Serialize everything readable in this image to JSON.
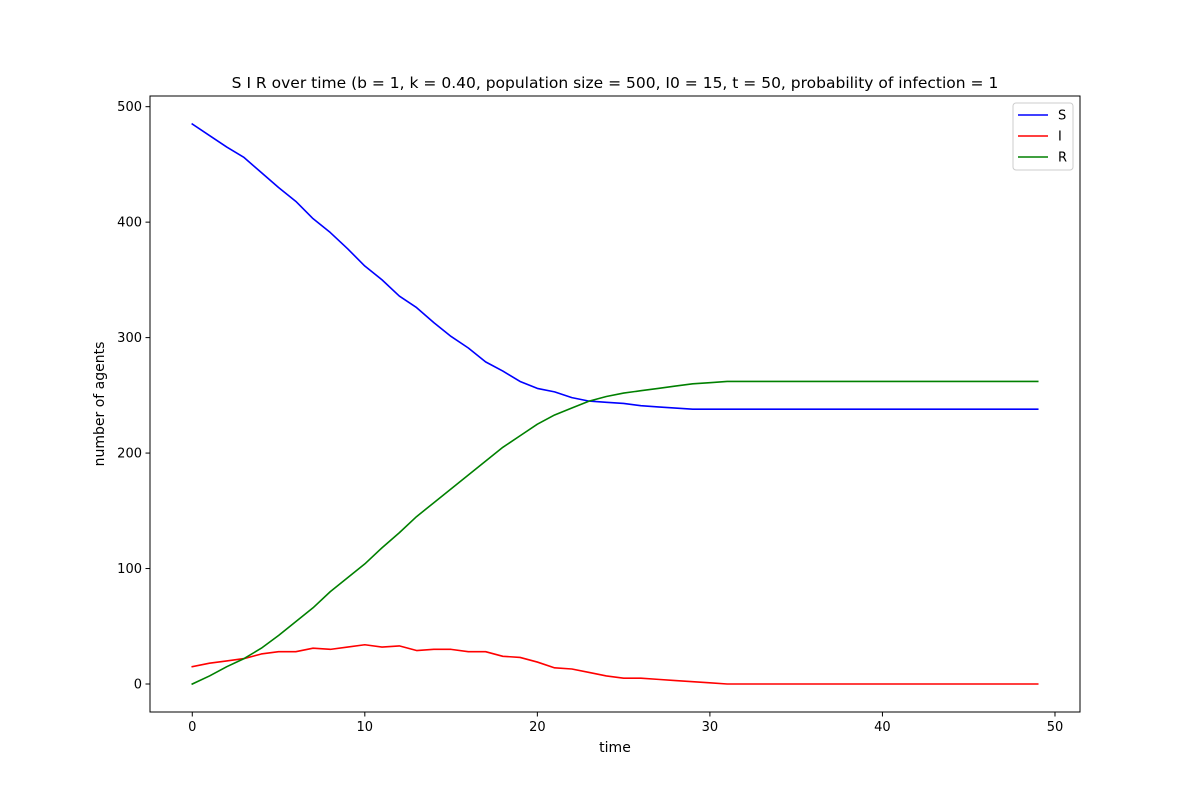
{
  "chart_data": {
    "type": "line",
    "title": "S I R over time (b = 1, k = 0.40, population size = 500, I0 = 15, t = 50, probability of infection = 1",
    "xlabel": "time",
    "ylabel": "number of agents",
    "xlim": [
      -2.45,
      51.45
    ],
    "ylim": [
      -24.25,
      509.25
    ],
    "xticks": [
      0,
      10,
      20,
      30,
      40,
      50
    ],
    "yticks": [
      0,
      100,
      200,
      300,
      400,
      500
    ],
    "grid": false,
    "legend_position": "top-right",
    "x": [
      0,
      1,
      2,
      3,
      4,
      5,
      6,
      7,
      8,
      9,
      10,
      11,
      12,
      13,
      14,
      15,
      16,
      17,
      18,
      19,
      20,
      21,
      22,
      23,
      24,
      25,
      26,
      27,
      28,
      29,
      30,
      31,
      32,
      33,
      34,
      35,
      36,
      37,
      38,
      39,
      40,
      41,
      42,
      43,
      44,
      45,
      46,
      47,
      48,
      49
    ],
    "series": [
      {
        "name": "S",
        "color": "#0000ff",
        "values": [
          485,
          475,
          465,
          456,
          443,
          430,
          418,
          403,
          391,
          377,
          362,
          350,
          336,
          326,
          313,
          301,
          291,
          279,
          271,
          262,
          256,
          253,
          248,
          245,
          244,
          243,
          241,
          240,
          239,
          238,
          238,
          238,
          238,
          238,
          238,
          238,
          238,
          238,
          238,
          238,
          238,
          238,
          238,
          238,
          238,
          238,
          238,
          238,
          238,
          238
        ]
      },
      {
        "name": "I",
        "color": "#ff0000",
        "values": [
          15,
          18,
          20,
          22,
          26,
          28,
          28,
          31,
          30,
          32,
          34,
          32,
          33,
          29,
          30,
          30,
          28,
          28,
          24,
          23,
          19,
          14,
          13,
          10,
          7,
          5,
          5,
          4,
          3,
          2,
          1,
          0,
          0,
          0,
          0,
          0,
          0,
          0,
          0,
          0,
          0,
          0,
          0,
          0,
          0,
          0,
          0,
          0,
          0,
          0
        ]
      },
      {
        "name": "R",
        "color": "#008000",
        "values": [
          0,
          7,
          15,
          22,
          31,
          42,
          54,
          66,
          80,
          92,
          104,
          118,
          131,
          145,
          157,
          169,
          181,
          193,
          205,
          215,
          225,
          233,
          239,
          245,
          249,
          252,
          254,
          256,
          258,
          260,
          261,
          262,
          262,
          262,
          262,
          262,
          262,
          262,
          262,
          262,
          262,
          262,
          262,
          262,
          262,
          262,
          262,
          262,
          262,
          262
        ]
      }
    ]
  }
}
